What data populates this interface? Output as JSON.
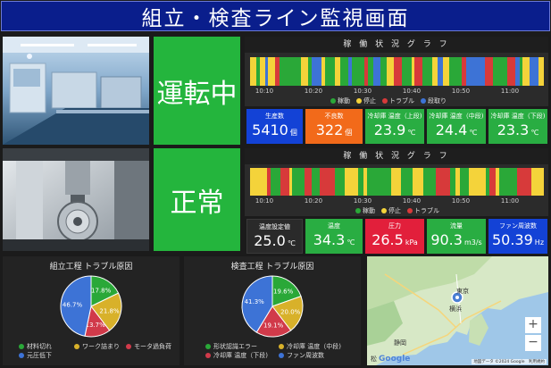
{
  "title": "組立・検査ライン監視画面",
  "colors": {
    "running": "#2aa838",
    "stopped": "#f4d33a",
    "trouble": "#d73a3a",
    "changeover": "#3d73d6",
    "status_green": "#24b53d",
    "kpi_blue": "#1342d6",
    "kpi_orange": "#f26a1a",
    "kpi_green": "#29ad42",
    "kpi_red": "#e21f3b",
    "kpi_gray": "#2a2a2a"
  },
  "line1": {
    "status": "運転中",
    "gantt_title": "稼 働 状 況 グ ラ フ",
    "ticks": [
      "10:10",
      "10:20",
      "10:30",
      "10:40",
      "10:50",
      "11:00"
    ],
    "legend": [
      "稼動",
      "停止",
      "トラブル",
      "段取り"
    ],
    "kpis": [
      {
        "label": "生産数",
        "value": "5410",
        "unit": "個"
      },
      {
        "label": "不良数",
        "value": "322",
        "unit": "個"
      },
      {
        "label": "冷却庫 温度（上段)",
        "value": "23.9",
        "unit": "℃"
      },
      {
        "label": "冷却庫 温度（中段)",
        "value": "24.4",
        "unit": "℃"
      },
      {
        "label": "冷却庫 温度（下段)",
        "value": "23.3",
        "unit": "℃"
      }
    ]
  },
  "line2": {
    "status": "正常",
    "gantt_title": "稼 働 状 況 グ ラ フ",
    "ticks": [
      "10:10",
      "10:20",
      "10:30",
      "10:40",
      "10:50",
      "11:00"
    ],
    "legend": [
      "稼動",
      "停止",
      "トラブル"
    ],
    "kpis": [
      {
        "label": "温度設定値",
        "value": "25.0",
        "unit": "℃"
      },
      {
        "label": "温度",
        "value": "34.3",
        "unit": "℃"
      },
      {
        "label": "圧力",
        "value": "26.5",
        "unit": "kPa"
      },
      {
        "label": "流量",
        "value": "90.3",
        "unit": "m3/s"
      },
      {
        "label": "ファン周波数",
        "value": "50.39",
        "unit": "Hz"
      }
    ]
  },
  "chart_data": [
    {
      "type": "pie",
      "title": "組立工程 トラブル原因",
      "categories": [
        "材料切れ",
        "ワーク詰まり",
        "モータ過負荷",
        "元圧低下"
      ],
      "values": [
        17.8,
        21.8,
        13.7,
        46.7
      ],
      "labels": [
        "17.8%",
        "21.8%",
        "13.7%",
        "46.7%"
      ],
      "colors": [
        "#2aa838",
        "#d8b12a",
        "#d13a4a",
        "#3d73d6"
      ]
    },
    {
      "type": "pie",
      "title": "検査工程 トラブル原因",
      "categories": [
        "形状認識エラー",
        "冷却庫 温度（中段)",
        "冷却庫 温度（下段)",
        "ファン周波数"
      ],
      "values": [
        19.6,
        20.0,
        19.1,
        41.3
      ],
      "labels": [
        "19.6%",
        "20.0%",
        "19.1%",
        "41.3%"
      ],
      "colors": [
        "#2aa838",
        "#d8b12a",
        "#d13a4a",
        "#3d73d6"
      ]
    }
  ],
  "map": {
    "labels": [
      "東京",
      "横浜",
      "静岡"
    ],
    "zoom_in": "+",
    "zoom_out": "−",
    "credit": "地図データ ©2024 Google　利用規約",
    "logo": "Google",
    "logo_extra": "松"
  }
}
